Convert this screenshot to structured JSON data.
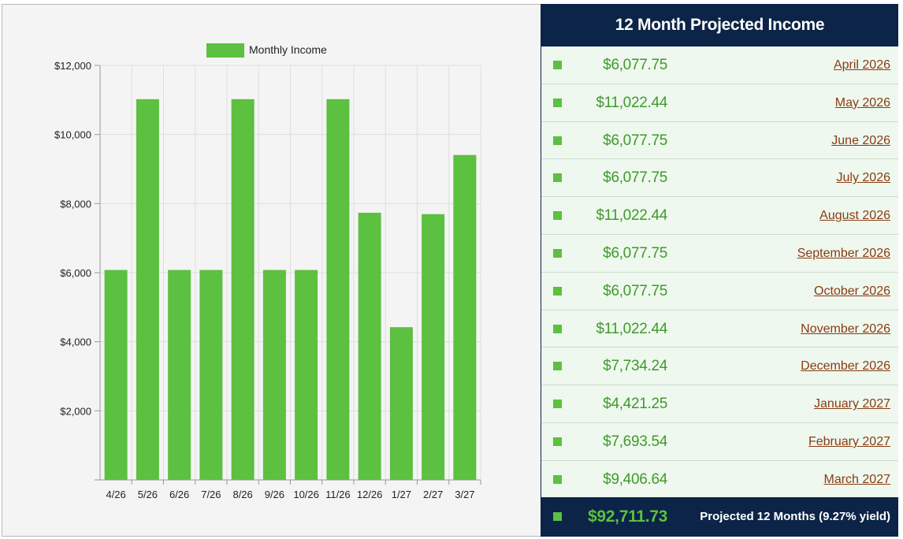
{
  "chart_data": {
    "type": "bar",
    "categories": [
      "4/26",
      "5/26",
      "6/26",
      "7/26",
      "8/26",
      "9/26",
      "10/26",
      "11/26",
      "12/26",
      "1/27",
      "2/27",
      "3/27"
    ],
    "series": [
      {
        "name": "Monthly Income",
        "values": [
          6077.75,
          11022.44,
          6077.75,
          6077.75,
          11022.44,
          6077.75,
          6077.75,
          11022.44,
          7734.24,
          4421.25,
          7693.54,
          9406.64
        ]
      }
    ],
    "yticks": [
      "$12,000",
      "$10,000",
      "$8,000",
      "$6,000",
      "$4,000",
      "$2,000"
    ],
    "ytick_values": [
      12000,
      10000,
      8000,
      6000,
      4000,
      2000
    ],
    "ylim": [
      0,
      12000
    ],
    "grid": true,
    "legend": "top-center",
    "bar_color": "#5cc040"
  },
  "panel": {
    "title": "12 Month Projected Income",
    "rows": [
      {
        "amount": "$6,077.75",
        "month": "April 2026"
      },
      {
        "amount": "$11,022.44",
        "month": "May 2026"
      },
      {
        "amount": "$6,077.75",
        "month": "June 2026"
      },
      {
        "amount": "$6,077.75",
        "month": "July 2026"
      },
      {
        "amount": "$11,022.44",
        "month": "August 2026"
      },
      {
        "amount": "$6,077.75",
        "month": "September 2026"
      },
      {
        "amount": "$6,077.75",
        "month": "October 2026"
      },
      {
        "amount": "$11,022.44",
        "month": "November 2026"
      },
      {
        "amount": "$7,734.24",
        "month": "December 2026"
      },
      {
        "amount": "$4,421.25",
        "month": "January 2027"
      },
      {
        "amount": "$7,693.54",
        "month": "February 2027"
      },
      {
        "amount": "$9,406.64",
        "month": "March 2027"
      }
    ],
    "total": {
      "amount": "$92,711.73",
      "label": "Projected 12 Months (9.27% yield)"
    },
    "colors": {
      "header_bg": "#0b2447",
      "amount": "#3f9a2a",
      "link": "#8a3b12",
      "square": "#5cc040"
    }
  }
}
